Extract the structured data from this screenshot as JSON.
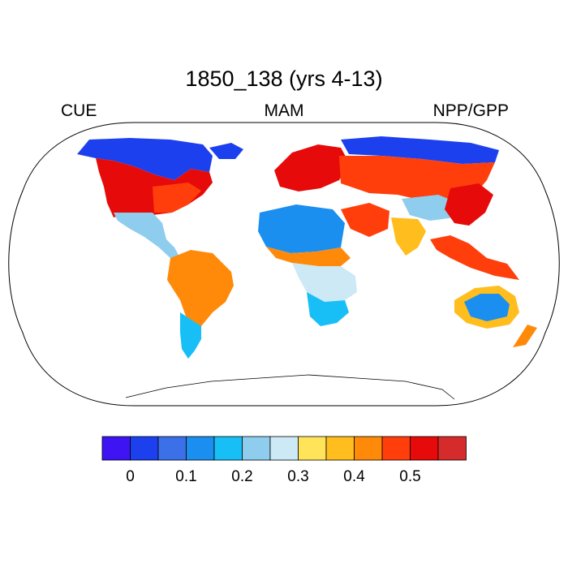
{
  "title": "1850_138 (yrs 4-13)",
  "left_label": "CUE",
  "center_label": "MAM",
  "right_label": "NPP/GPP",
  "colorbar": {
    "colors": [
      "#3f14f2",
      "#1c40ee",
      "#3b70e8",
      "#1a8ff0",
      "#18bff6",
      "#8ecdee",
      "#cde9f6",
      "#ffe45a",
      "#ffbd1e",
      "#ff8a0a",
      "#ff3e0c",
      "#e60b0a",
      "#d52b2b"
    ],
    "tick_labels": [
      "0",
      "0.1",
      "0.2",
      "0.3",
      "0.4",
      "0.5"
    ],
    "tick_positions": [
      1,
      3,
      5,
      7,
      9,
      11
    ]
  },
  "map": {
    "projection": "Robinson",
    "field": "CUE (NPP/GPP) seasonal mean",
    "regions": [
      {
        "name": "arctic-canada",
        "level": 1
      },
      {
        "name": "greenland-coast",
        "level": 1
      },
      {
        "name": "northern-siberia",
        "level": 1
      },
      {
        "name": "north-america",
        "level": 11
      },
      {
        "name": "eastern-us",
        "level": 11
      },
      {
        "name": "mexico-central-america",
        "level": 6
      },
      {
        "name": "amazon",
        "level": 9
      },
      {
        "name": "patagonia",
        "level": 5
      },
      {
        "name": "europe",
        "level": 11
      },
      {
        "name": "sahara",
        "level": 3
      },
      {
        "name": "sahel",
        "level": 10
      },
      {
        "name": "central-africa",
        "level": 7
      },
      {
        "name": "southern-africa",
        "level": 5
      },
      {
        "name": "middle-east",
        "level": 10
      },
      {
        "name": "russia-central-asia",
        "level": 11
      },
      {
        "name": "tibet",
        "level": 5
      },
      {
        "name": "india",
        "level": 8
      },
      {
        "name": "east-asia",
        "level": 11
      },
      {
        "name": "southeast-asia",
        "level": 10
      },
      {
        "name": "australia-interior",
        "level": 5
      },
      {
        "name": "australia-rim",
        "level": 8
      },
      {
        "name": "new-zealand",
        "level": 9
      }
    ]
  }
}
